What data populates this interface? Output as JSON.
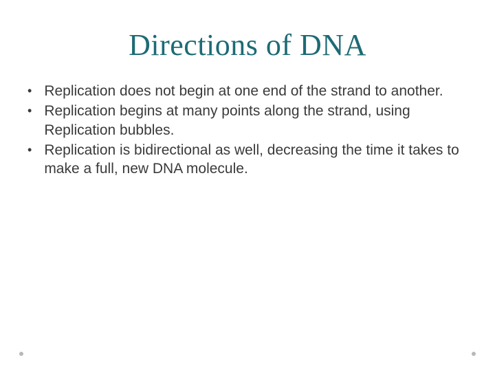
{
  "slide": {
    "title": "Directions of DNA",
    "title_color": "#1d6b75",
    "title_fontsize": 44,
    "title_font": "Georgia",
    "background_color": "#ffffff",
    "bullets": [
      {
        "marker": "•",
        "text": "Replication does not begin at one end of the strand to another."
      },
      {
        "marker": "•",
        "text": "Replication begins at many points along the strand, using Replication bubbles."
      },
      {
        "marker": "•",
        "text": "Replication is bidirectional as well, decreasing the time it takes to make a full, new DNA molecule."
      }
    ],
    "bullet_fontsize": 21,
    "bullet_color": "#3a3a3a",
    "footer_dot_color": "#b8b8b8"
  }
}
